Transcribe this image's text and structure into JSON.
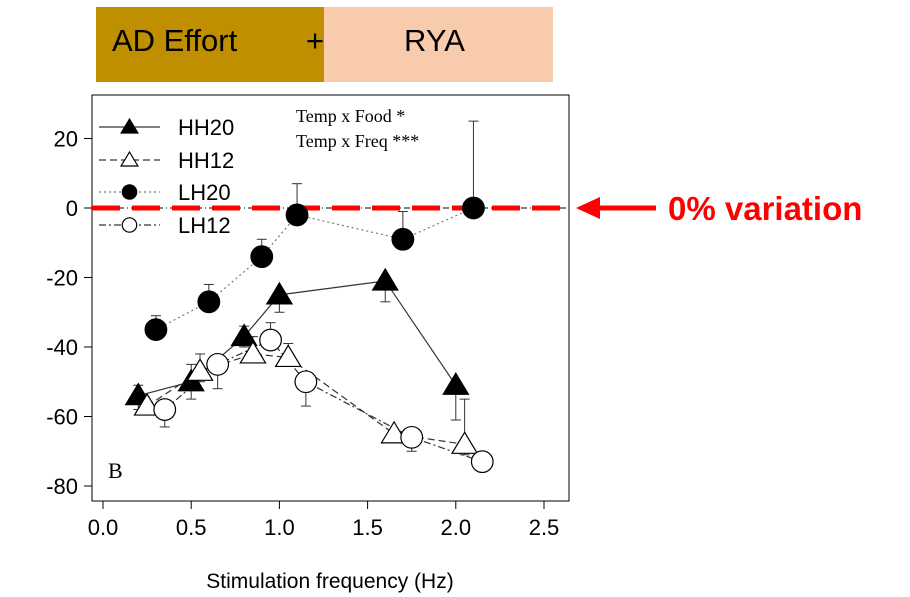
{
  "banner": {
    "left_label": "AD Effort",
    "plus_label": "+",
    "right_label": "RYA",
    "left_color": "#bf8f00",
    "right_color": "#f8cbad"
  },
  "chart_data": {
    "type": "scatter",
    "xlabel": "Stimulation frequency (Hz)",
    "ylabel": "",
    "panel_label": "B",
    "xlim": [
      -0.05,
      2.62
    ],
    "ylim": [
      -84,
      33
    ],
    "x_ticks": [
      0.0,
      0.5,
      1.0,
      1.5,
      2.0,
      2.5
    ],
    "x_tick_labels": [
      "0.0",
      "0.5",
      "1.0",
      "1.5",
      "2.0",
      "2.5"
    ],
    "y_ticks": [
      20,
      0,
      -20,
      -40,
      -60,
      -80
    ],
    "y_tick_labels": [
      "20",
      "0",
      "-20",
      "-40",
      "-60",
      "-80"
    ],
    "stats_text": [
      "Temp x Food *",
      "Temp x Freq ***"
    ],
    "legend_placement": "top-left",
    "series": [
      {
        "name": "HH20",
        "marker": "triangle-filled",
        "line": "solid",
        "x": [
          0.2,
          0.5,
          0.8,
          1.0,
          1.6,
          2.0
        ],
        "y": [
          -54,
          -50,
          -37,
          -25,
          -21,
          -51
        ],
        "err_up": [
          3,
          5,
          3,
          0,
          0,
          0
        ],
        "err_down": [
          4,
          5,
          3,
          5,
          6,
          10
        ]
      },
      {
        "name": "HH12",
        "marker": "triangle-open",
        "line": "dashed",
        "x": [
          0.25,
          0.55,
          0.85,
          1.05,
          1.65,
          2.05
        ],
        "y": [
          -57,
          -47,
          -42,
          -43,
          -65,
          -68
        ],
        "err_up": [
          0,
          5,
          5,
          4,
          0,
          13
        ],
        "err_down": [
          0,
          3,
          0,
          0,
          0,
          3
        ]
      },
      {
        "name": "LH20",
        "marker": "circle-filled",
        "line": "dotted",
        "x": [
          0.3,
          0.6,
          0.9,
          1.1,
          1.7,
          2.1
        ],
        "y": [
          -35,
          -27,
          -14,
          -2,
          -9,
          0
        ],
        "err_up": [
          4,
          5,
          5,
          9,
          8,
          25
        ],
        "err_down": [
          0,
          0,
          0,
          0,
          0,
          0
        ]
      },
      {
        "name": "LH12",
        "marker": "circle-open",
        "line": "dashdot",
        "x": [
          0.35,
          0.65,
          0.95,
          1.15,
          1.75,
          2.15
        ],
        "y": [
          -58,
          -45,
          -38,
          -50,
          -66,
          -73
        ],
        "err_up": [
          0,
          0,
          5,
          0,
          0,
          0
        ],
        "err_down": [
          5,
          7,
          0,
          7,
          4,
          0
        ]
      }
    ],
    "reference_line": {
      "y": 0,
      "color": "#ff0000",
      "label": "0% variation"
    }
  }
}
